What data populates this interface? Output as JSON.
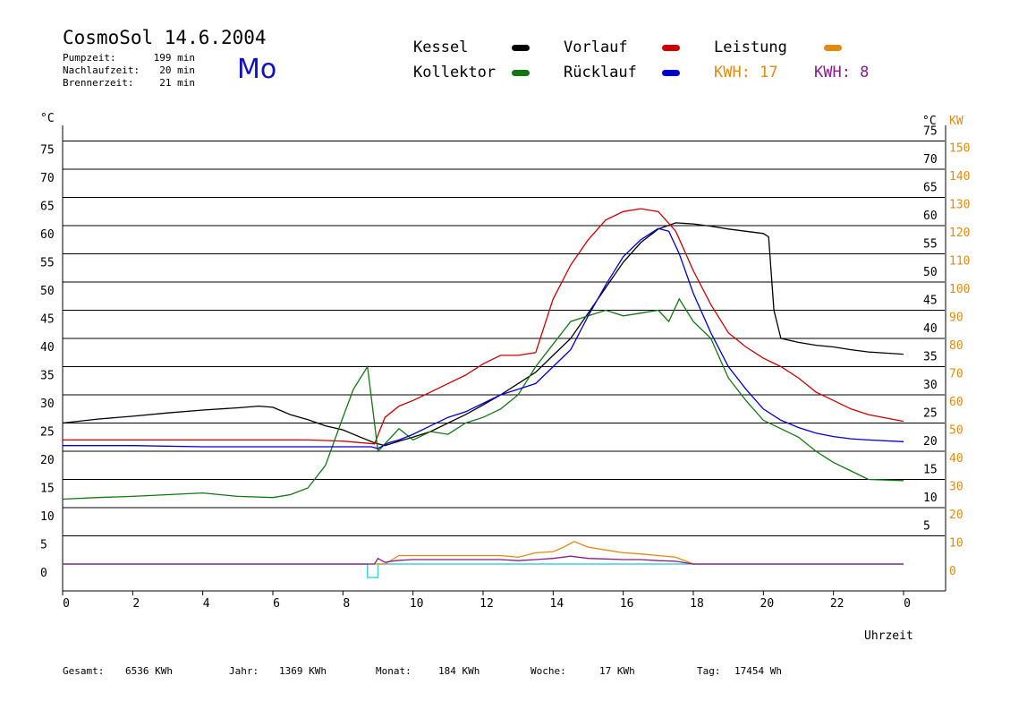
{
  "header": {
    "title": "CosmoSol 14.6.2004",
    "weekday": "Mo",
    "stats": [
      {
        "label": "Pumpzeit:",
        "value": "199 min"
      },
      {
        "label": "Nachlaufzeit:",
        "value": "20 min"
      },
      {
        "label": "Brennerzeit:",
        "value": "21 min"
      }
    ]
  },
  "legend": {
    "kessel": "Kessel",
    "vorlauf": "Vorlauf",
    "leistung": "Leistung",
    "kollektor": "Kollektor",
    "ruecklauf": "Rücklauf",
    "kwh1": "KWH: 17",
    "kwh2": "KWH: 8"
  },
  "footer": {
    "gesamt_label": "Gesamt:",
    "gesamt_value": "6536 KWh",
    "jahr_label": "Jahr:",
    "jahr_value": "1369 KWh",
    "monat_label": "Monat:",
    "monat_value": "184 KWh",
    "woche_label": "Woche:",
    "woche_value": "17 KWh",
    "tag_label": "Tag:",
    "tag_value": "17454 Wh"
  },
  "colors": {
    "kessel": "#000000",
    "vorlauf": "#cc0000",
    "kollektor": "#117711",
    "ruecklauf": "#0000cc",
    "leistung": "#e08a10",
    "kwh2": "#881c88",
    "burner": "#40d0e0"
  },
  "chart_data": {
    "type": "line",
    "xlabel": "Uhrzeit",
    "ylabel_left": "°C",
    "ylabel_right_unit1": "°C",
    "ylabel_right_unit2": "KW",
    "xlim": [
      0,
      24
    ],
    "ylim": [
      -4,
      80
    ],
    "xticks": [
      "0",
      "2",
      "4",
      "6",
      "8",
      "10",
      "12",
      "14",
      "16",
      "18",
      "20",
      "22",
      "0"
    ],
    "yticks": [
      0,
      5,
      10,
      15,
      20,
      25,
      30,
      35,
      40,
      45,
      50,
      55,
      60,
      65,
      70,
      75
    ],
    "right_kw_ticks": [
      "0",
      "10",
      "20",
      "30",
      "40",
      "50",
      "60",
      "70",
      "80",
      "90",
      "100",
      "110",
      "120",
      "130",
      "140",
      "150"
    ],
    "right_c_ticks": [
      "5",
      "10",
      "15",
      "20",
      "25",
      "30",
      "35",
      "40",
      "45",
      "50",
      "55",
      "60",
      "65",
      "70",
      "75"
    ],
    "grid": "horizontal",
    "series": [
      {
        "name": "Kessel",
        "key": "kessel",
        "x": [
          0,
          1,
          2,
          3,
          4,
          5,
          5.6,
          6,
          6.5,
          7,
          7.5,
          8,
          8.5,
          8.9,
          9.2,
          9.6,
          10,
          10.5,
          11,
          11.5,
          12,
          12.5,
          13,
          13.5,
          14,
          14.5,
          15,
          15.5,
          16,
          16.5,
          17,
          17.5,
          18,
          18.5,
          19,
          19.5,
          20,
          20.15,
          20.3,
          20.5,
          21,
          21.5,
          22,
          22.5,
          23,
          24
        ],
        "y": [
          25,
          25.7,
          26.2,
          26.8,
          27.3,
          27.7,
          28,
          27.8,
          26.5,
          25.6,
          24.5,
          23.8,
          22.5,
          21.5,
          21,
          21.8,
          22.5,
          23.5,
          25,
          26.5,
          28.2,
          30,
          32,
          34,
          37,
          40,
          44.5,
          49,
          53.5,
          57,
          59.4,
          60.5,
          60.3,
          59.9,
          59.4,
          59,
          58.6,
          58,
          45,
          40,
          39.3,
          38.8,
          38.5,
          38,
          37.6,
          37.2
        ]
      },
      {
        "name": "Vorlauf",
        "key": "vorlauf",
        "x": [
          0,
          2,
          4,
          6,
          7,
          8,
          8.9,
          9.2,
          9.6,
          10,
          10.5,
          11,
          11.5,
          12,
          12.5,
          13,
          13.5,
          14,
          14.5,
          15,
          15.5,
          16,
          16.5,
          17,
          17.5,
          18,
          18.5,
          19,
          19.5,
          20,
          20.5,
          21,
          21.5,
          22,
          22.5,
          23,
          24
        ],
        "y": [
          22,
          22,
          22,
          22,
          22,
          21.8,
          21.3,
          26,
          28,
          29,
          30.5,
          32,
          33.5,
          35.5,
          37,
          37,
          37.5,
          47,
          53,
          57.5,
          61,
          62.5,
          63,
          62.5,
          59,
          52,
          46,
          41,
          38.5,
          36.5,
          35,
          33,
          30.5,
          29,
          27.5,
          26.5,
          25.3
        ]
      },
      {
        "name": "Kollektor",
        "key": "kollektor",
        "x": [
          0,
          1,
          2,
          3,
          4,
          5,
          6,
          6.5,
          7,
          7.5,
          8,
          8.3,
          8.7,
          9,
          9.3,
          9.6,
          10,
          10.5,
          11,
          11.5,
          12,
          12.5,
          13,
          13.5,
          14,
          14.5,
          15,
          15.5,
          16,
          16.5,
          17,
          17.3,
          17.6,
          18,
          18.5,
          19,
          19.5,
          20,
          20.5,
          21,
          21.5,
          22,
          22.5,
          23,
          24
        ],
        "y": [
          11.5,
          11.8,
          12,
          12.3,
          12.6,
          12,
          11.8,
          12.3,
          13.5,
          17.5,
          26,
          31,
          35,
          20,
          22,
          24,
          22,
          23.5,
          23,
          25,
          26,
          27.5,
          30,
          35,
          39,
          43,
          44,
          45,
          44,
          44.5,
          45,
          43,
          47,
          43,
          40,
          33,
          29,
          25.5,
          24,
          22.5,
          20,
          18,
          16.5,
          15,
          14.8
        ]
      },
      {
        "name": "Rücklauf",
        "key": "ruecklauf",
        "x": [
          0,
          2,
          4,
          6,
          7,
          8,
          8.8,
          9,
          9.3,
          9.6,
          10,
          10.5,
          11,
          11.5,
          12,
          12.5,
          13,
          13.5,
          14,
          14.5,
          15,
          15.5,
          16,
          16.5,
          17,
          17.3,
          17.6,
          18,
          18.5,
          19,
          19.5,
          20,
          20.5,
          21,
          21.5,
          22,
          22.5,
          23,
          24
        ],
        "y": [
          21,
          21,
          20.8,
          20.8,
          20.8,
          20.8,
          20.8,
          20.5,
          21.5,
          22,
          23,
          24.5,
          26,
          27,
          28.5,
          30,
          31,
          32,
          35,
          38,
          44,
          49.5,
          54.5,
          57.5,
          59.5,
          59,
          55,
          48,
          41,
          35,
          31,
          27.5,
          25.5,
          24.2,
          23.2,
          22.6,
          22.2,
          22,
          21.7
        ]
      },
      {
        "name": "Leistung",
        "key": "leistung",
        "x": [
          0,
          8.9,
          9.2,
          9.6,
          10,
          10.5,
          11,
          11.5,
          12,
          12.5,
          13,
          13.5,
          14,
          14.3,
          14.6,
          15,
          15.5,
          16,
          16.5,
          17,
          17.5,
          17.8,
          18,
          20,
          22,
          24
        ],
        "y": [
          0,
          0,
          0,
          1.5,
          1.5,
          1.5,
          1.5,
          1.5,
          1.5,
          1.5,
          1.2,
          2,
          2.2,
          3,
          4,
          3,
          2.5,
          2,
          1.8,
          1.5,
          1.2,
          0.5,
          0,
          0,
          0,
          0
        ]
      },
      {
        "name": "KWH 8",
        "key": "kwh2",
        "x": [
          0,
          8.9,
          9,
          9.2,
          9.5,
          10,
          10.5,
          11,
          11.5,
          12,
          12.5,
          13,
          13.5,
          14,
          14.5,
          15,
          15.5,
          16,
          16.5,
          17,
          17.5,
          18,
          24
        ],
        "y": [
          0,
          0,
          1,
          0.3,
          0.6,
          0.8,
          0.8,
          0.8,
          0.8,
          0.8,
          0.8,
          0.6,
          0.8,
          1,
          1.4,
          1,
          0.9,
          0.8,
          0.8,
          0.6,
          0.5,
          0,
          0
        ]
      }
    ]
  }
}
